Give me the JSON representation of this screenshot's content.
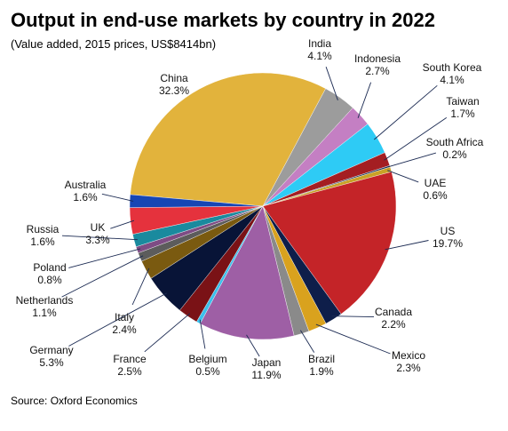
{
  "header": {
    "title": "Output in end-use markets by country in 2022",
    "subtitle": "(Value added, 2015 prices, US$8414bn)"
  },
  "footer": {
    "source": "Source: Oxford Economics"
  },
  "chart_data": {
    "type": "pie",
    "title": "Output in end-use markets by country in 2022",
    "subtitle": "(Value added, 2015 prices, US$8414bn)",
    "slices": [
      {
        "label": "China",
        "value": 32.3,
        "display": "32.3%",
        "color": "#E2B33C"
      },
      {
        "label": "India",
        "value": 4.1,
        "display": "4.1%",
        "color": "#9C9C9C"
      },
      {
        "label": "Indonesia",
        "value": 2.7,
        "display": "2.7%",
        "color": "#C47FC3"
      },
      {
        "label": "South Korea",
        "value": 4.1,
        "display": "4.1%",
        "color": "#2ECBF5"
      },
      {
        "label": "Taiwan",
        "value": 1.7,
        "display": "1.7%",
        "color": "#A41E22"
      },
      {
        "label": "South Africa",
        "value": 0.2,
        "display": "0.2%",
        "color": "#1F3A5F"
      },
      {
        "label": "UAE",
        "value": 0.6,
        "display": "0.6%",
        "color": "#C9A227"
      },
      {
        "label": "US",
        "value": 19.7,
        "display": "19.7%",
        "color": "#C42428"
      },
      {
        "label": "Canada",
        "value": 2.2,
        "display": "2.2%",
        "color": "#0E1E4A"
      },
      {
        "label": "Mexico",
        "value": 2.3,
        "display": "2.3%",
        "color": "#D9A21E"
      },
      {
        "label": "Brazil",
        "value": 1.9,
        "display": "1.9%",
        "color": "#8A8A8A"
      },
      {
        "label": "Japan",
        "value": 11.9,
        "display": "11.9%",
        "color": "#9E5FA5"
      },
      {
        "label": "Belgium",
        "value": 0.5,
        "display": "0.5%",
        "color": "#3BC0EC"
      },
      {
        "label": "France",
        "value": 2.5,
        "display": "2.5%",
        "color": "#7A1216"
      },
      {
        "label": "Germany",
        "value": 5.3,
        "display": "5.3%",
        "color": "#081437"
      },
      {
        "label": "Italy",
        "value": 2.4,
        "display": "2.4%",
        "color": "#7A5A10"
      },
      {
        "label": "Netherlands",
        "value": 1.1,
        "display": "1.1%",
        "color": "#5C5C5C"
      },
      {
        "label": "Poland",
        "value": 0.8,
        "display": "0.8%",
        "color": "#7E4C84"
      },
      {
        "label": "Russia",
        "value": 1.6,
        "display": "1.6%",
        "color": "#1A8A9E"
      },
      {
        "label": "UK",
        "value": 3.3,
        "display": "3.3%",
        "color": "#E5323D"
      },
      {
        "label": "Australia",
        "value": 1.6,
        "display": "1.6%",
        "color": "#1746B4"
      }
    ]
  }
}
